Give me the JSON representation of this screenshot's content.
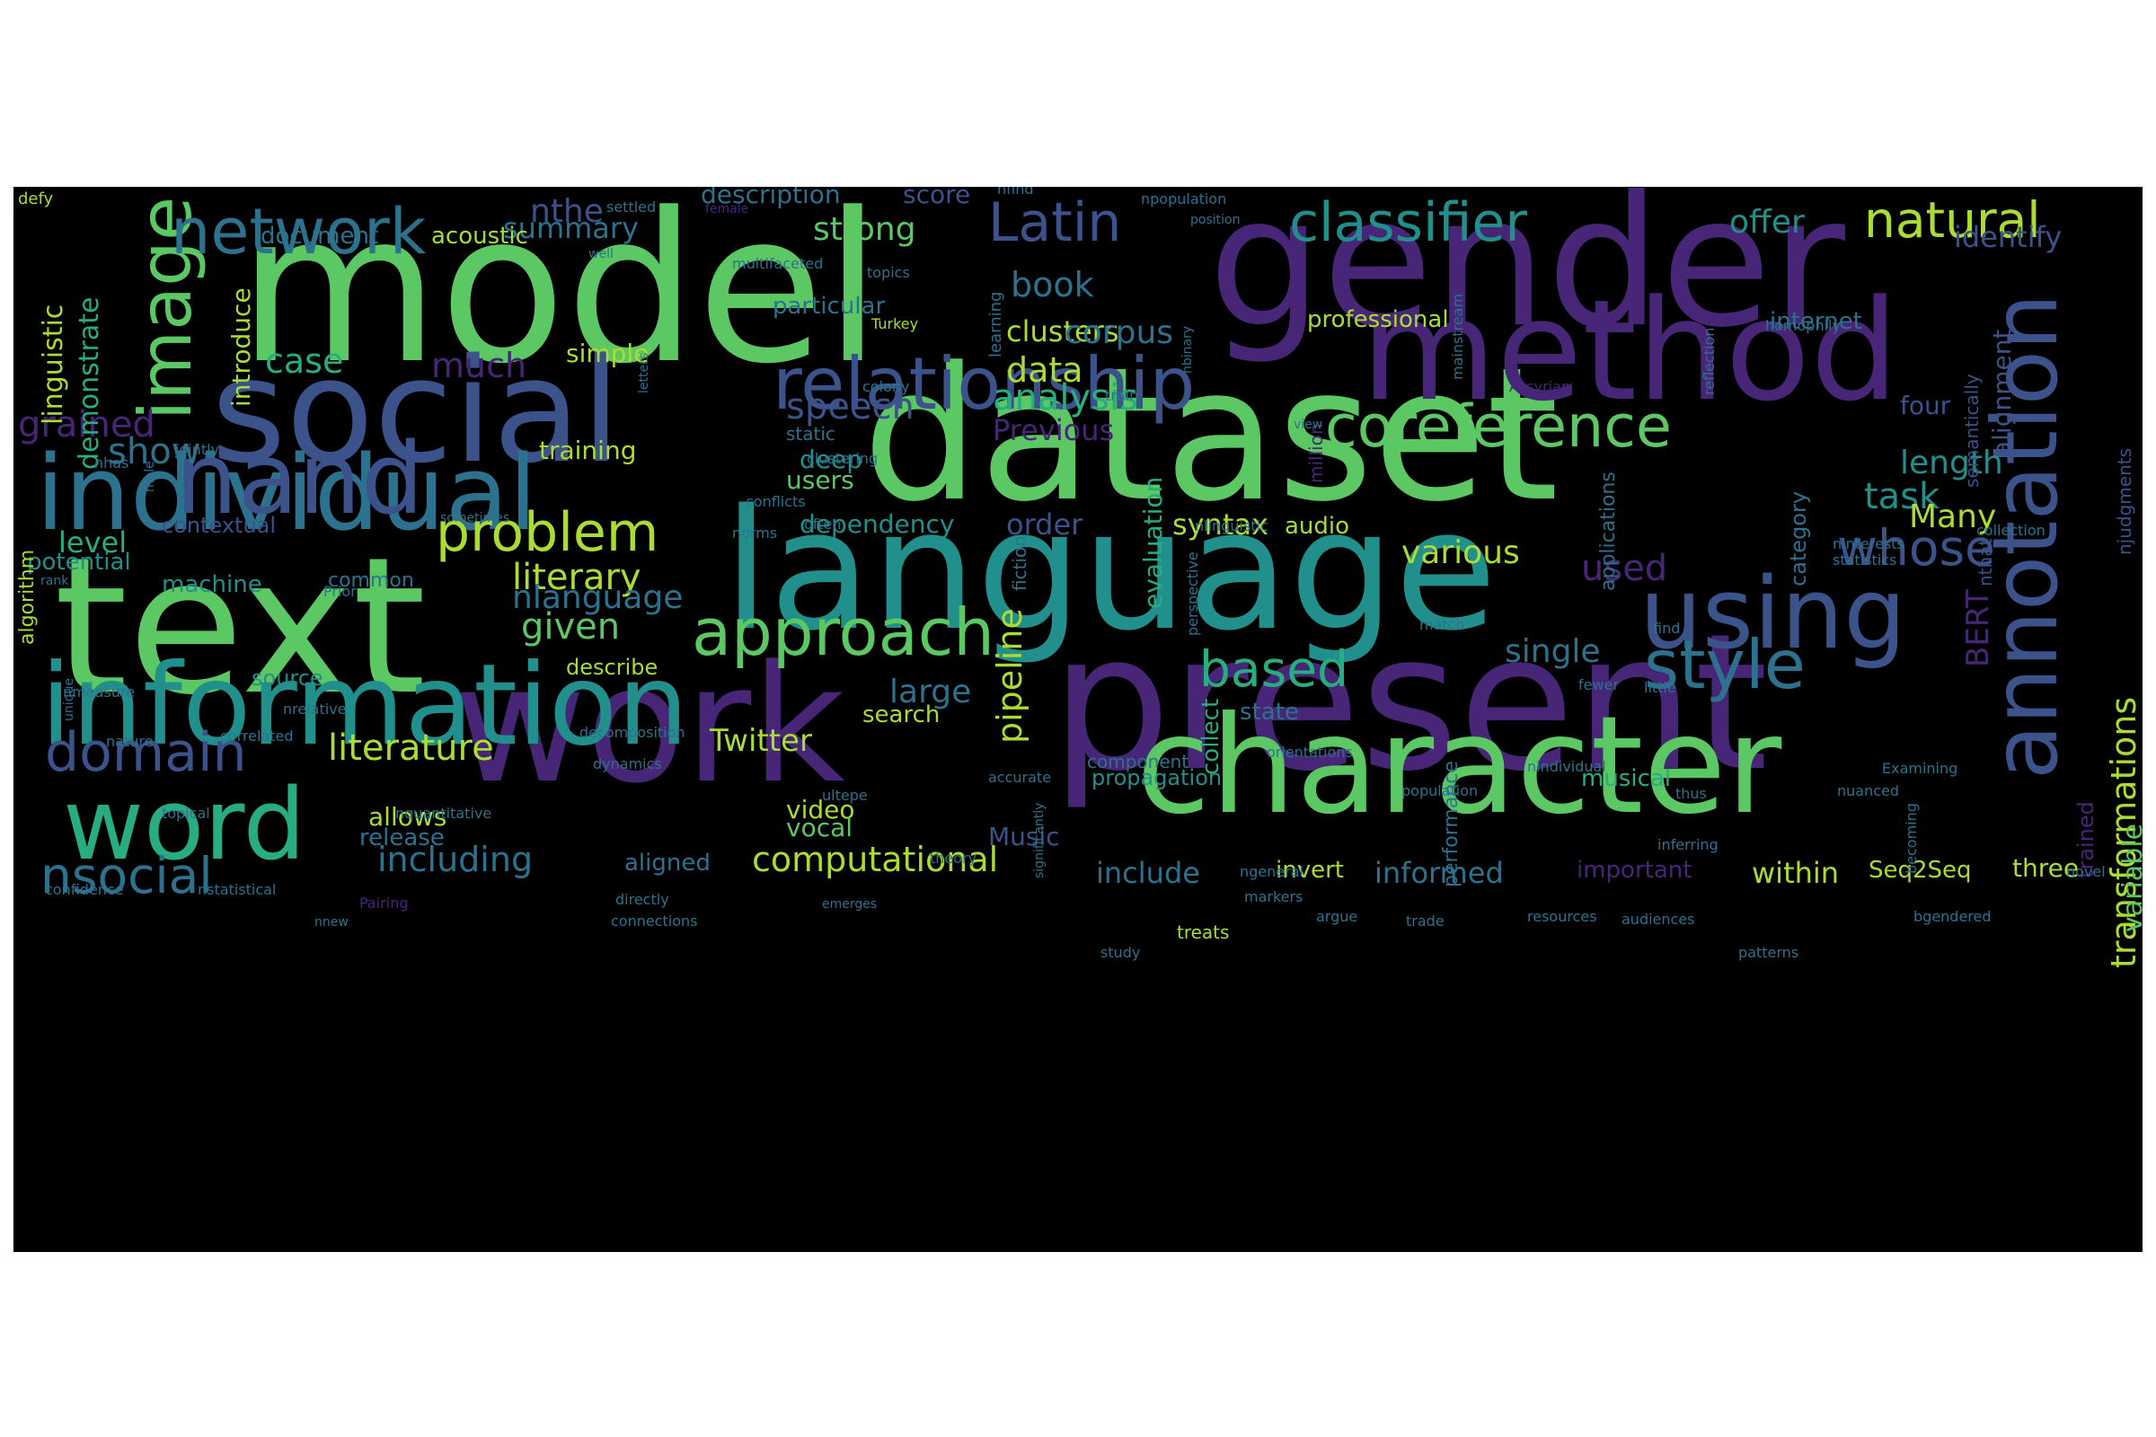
{
  "colors": {
    "background": "#000000",
    "page": "#ffffff",
    "palette": [
      "#440154",
      "#482677",
      "#3b528b",
      "#2c728e",
      "#21908c",
      "#27ad81",
      "#5cc863",
      "#aadc32",
      "#fde725"
    ]
  },
  "words": [
    {
      "text": "model",
      "color": "#5cc863"
    },
    {
      "text": "gender",
      "color": "#482677"
    },
    {
      "text": "dataset",
      "color": "#5cc863"
    },
    {
      "text": "social",
      "color": "#3b528b"
    },
    {
      "text": "method",
      "color": "#482677"
    },
    {
      "text": "present",
      "color": "#482677"
    },
    {
      "text": "text",
      "color": "#5cc863"
    },
    {
      "text": "language",
      "color": "#21908c"
    },
    {
      "text": "work",
      "color": "#482677"
    },
    {
      "text": "character",
      "color": "#5cc863"
    },
    {
      "text": "information",
      "color": "#21908c"
    },
    {
      "text": "individual",
      "color": "#2c728e"
    },
    {
      "text": "nand",
      "color": "#3b528b"
    },
    {
      "text": "annotation",
      "color": "#3b528b"
    },
    {
      "text": "image",
      "color": "#5cc863"
    },
    {
      "text": "relationship",
      "color": "#3b528b"
    },
    {
      "text": "network",
      "color": "#2c728e"
    },
    {
      "text": "word",
      "color": "#27ad81"
    },
    {
      "text": "using",
      "color": "#3b528b"
    },
    {
      "text": "approach",
      "color": "#5cc863"
    },
    {
      "text": "coreference",
      "color": "#5cc863"
    },
    {
      "text": "style",
      "color": "#2c728e"
    },
    {
      "text": "classifier",
      "color": "#21908c"
    },
    {
      "text": "domain",
      "color": "#3b528b"
    },
    {
      "text": "Latin",
      "color": "#3b528b"
    },
    {
      "text": "problem",
      "color": "#aadc32"
    },
    {
      "text": "natural",
      "color": "#aadc32"
    },
    {
      "text": "nsocial",
      "color": "#2c728e"
    },
    {
      "text": "whose",
      "color": "#3b528b"
    },
    {
      "text": "based",
      "color": "#27ad81"
    },
    {
      "text": "literature",
      "color": "#aadc32"
    },
    {
      "text": "computational",
      "color": "#aadc32"
    },
    {
      "text": "including",
      "color": "#2c728e"
    },
    {
      "text": "grained",
      "color": "#482677"
    },
    {
      "text": "speech",
      "color": "#3b528b"
    },
    {
      "text": "literary",
      "color": "#aadc32"
    },
    {
      "text": "transformations",
      "color": "#aadc32"
    },
    {
      "text": "book",
      "color": "#2c728e"
    },
    {
      "text": "clusters",
      "color": "#aadc32"
    },
    {
      "text": "data",
      "color": "#aadc32"
    },
    {
      "text": "analysis",
      "color": "#27ad81"
    },
    {
      "text": "strong",
      "color": "#5cc863"
    },
    {
      "text": "nthe",
      "color": "#3b528b"
    },
    {
      "text": "summary",
      "color": "#2c728e"
    },
    {
      "text": "case",
      "color": "#27ad81"
    },
    {
      "text": "much",
      "color": "#482677"
    },
    {
      "text": "show",
      "color": "#2c728e"
    },
    {
      "text": "given",
      "color": "#5cc863"
    },
    {
      "text": "nlanguage",
      "color": "#2c728e"
    },
    {
      "text": "corpus",
      "color": "#2c728e"
    },
    {
      "text": "offer",
      "color": "#21908c"
    },
    {
      "text": "identify",
      "color": "#3b528b"
    },
    {
      "text": "task",
      "color": "#21908c"
    },
    {
      "text": "length",
      "color": "#21908c"
    },
    {
      "text": "Many",
      "color": "#aadc32"
    },
    {
      "text": "various",
      "color": "#aadc32"
    },
    {
      "text": "used",
      "color": "#482677"
    },
    {
      "text": "single",
      "color": "#2c728e"
    },
    {
      "text": "large",
      "color": "#2c728e"
    },
    {
      "text": "pipeline",
      "color": "#aadc32"
    },
    {
      "text": "Twitter",
      "color": "#aadc32"
    },
    {
      "text": "linguistic",
      "color": "#aadc32"
    },
    {
      "text": "demonstrate",
      "color": "#27ad81"
    },
    {
      "text": "introduce",
      "color": "#aadc32"
    },
    {
      "text": "document",
      "color": "#2c728e"
    },
    {
      "text": "acoustic",
      "color": "#aadc32"
    },
    {
      "text": "description",
      "color": "#2c728e"
    },
    {
      "text": "score",
      "color": "#3b528b"
    },
    {
      "text": "particular",
      "color": "#2c728e"
    },
    {
      "text": "professional",
      "color": "#aadc32"
    },
    {
      "text": "internet",
      "color": "#2c728e"
    },
    {
      "text": "simple",
      "color": "#aadc32"
    },
    {
      "text": "training",
      "color": "#aadc32"
    },
    {
      "text": "Previous",
      "color": "#482677"
    },
    {
      "text": "deep",
      "color": "#21908c"
    },
    {
      "text": "users",
      "color": "#5cc863"
    },
    {
      "text": "dependency",
      "color": "#21908c"
    },
    {
      "text": "order",
      "color": "#3b528b"
    },
    {
      "text": "syntax",
      "color": "#aadc32"
    },
    {
      "text": "audio",
      "color": "#aadc32"
    },
    {
      "text": "four",
      "color": "#3b528b"
    },
    {
      "text": "evaluation",
      "color": "#27ad81"
    },
    {
      "text": "level",
      "color": "#27ad81"
    },
    {
      "text": "potential",
      "color": "#21908c"
    },
    {
      "text": "contextual",
      "color": "#3b528b"
    },
    {
      "text": "machine",
      "color": "#21908c"
    },
    {
      "text": "common",
      "color": "#2c728e"
    },
    {
      "text": "source",
      "color": "#21908c"
    },
    {
      "text": "describe",
      "color": "#aadc32"
    },
    {
      "text": "algorithm",
      "color": "#aadc32"
    },
    {
      "text": "allows",
      "color": "#aadc32"
    },
    {
      "text": "release",
      "color": "#2c728e"
    },
    {
      "text": "video",
      "color": "#aadc32"
    },
    {
      "text": "vocal",
      "color": "#5cc863"
    },
    {
      "text": "Music",
      "color": "#3b528b"
    },
    {
      "text": "aligned",
      "color": "#2c728e"
    },
    {
      "text": "include",
      "color": "#2c728e"
    },
    {
      "text": "invert",
      "color": "#aadc32"
    },
    {
      "text": "informed",
      "color": "#2c728e"
    },
    {
      "text": "important",
      "color": "#482677"
    },
    {
      "text": "within",
      "color": "#aadc32"
    },
    {
      "text": "Seq2Seq",
      "color": "#aadc32"
    },
    {
      "text": "three",
      "color": "#aadc32"
    },
    {
      "text": "musical",
      "color": "#27ad81"
    },
    {
      "text": "propagation",
      "color": "#21908c"
    },
    {
      "text": "state",
      "color": "#2c728e"
    },
    {
      "text": "search",
      "color": "#aadc32"
    },
    {
      "text": "collect",
      "color": "#27ad81"
    },
    {
      "text": "category",
      "color": "#2c728e"
    },
    {
      "text": "variable",
      "color": "#5cc863"
    },
    {
      "text": "BERT",
      "color": "#482677"
    },
    {
      "text": "alignment",
      "color": "#3b528b"
    },
    {
      "text": "trained",
      "color": "#482677"
    },
    {
      "text": "performance",
      "color": "#2c728e"
    },
    {
      "text": "applications",
      "color": "#2c728e"
    },
    {
      "text": "million",
      "color": "#482677"
    },
    {
      "text": "fiction",
      "color": "#2c728e"
    },
    {
      "text": "semantically",
      "color": "#3b528b"
    },
    {
      "text": "njudgments",
      "color": "#3b528b"
    },
    {
      "text": "nthat",
      "color": "#3b528b"
    },
    {
      "text": "learning",
      "color": "#2c728e"
    },
    {
      "text": "static",
      "color": "#2c728e"
    },
    {
      "text": "clustering",
      "color": "#2c728e"
    },
    {
      "text": "conflicts",
      "color": "#2c728e"
    },
    {
      "text": "norms",
      "color": "#2c728e"
    },
    {
      "text": "often",
      "color": "#2c728e"
    },
    {
      "text": "nmeasure",
      "color": "#2c728e"
    },
    {
      "text": "nrelative",
      "color": "#2c728e"
    },
    {
      "text": "nature",
      "color": "#2c728e"
    },
    {
      "text": "correlated",
      "color": "#2c728e"
    },
    {
      "text": "dynamics",
      "color": "#2c728e"
    },
    {
      "text": "decomposition",
      "color": "#2c728e"
    },
    {
      "text": "topical",
      "color": "#2c728e"
    },
    {
      "text": "nquantitative",
      "color": "#2c728e"
    },
    {
      "text": "confidence",
      "color": "#2c728e"
    },
    {
      "text": "nstatistical",
      "color": "#2c728e"
    },
    {
      "text": "Pairing",
      "color": "#482677"
    },
    {
      "text": "directly",
      "color": "#2c728e"
    },
    {
      "text": "connections",
      "color": "#2c728e"
    },
    {
      "text": "nnew",
      "color": "#2c728e"
    },
    {
      "text": "emerges",
      "color": "#2c728e"
    },
    {
      "text": "component",
      "color": "#2c728e"
    },
    {
      "text": "accurate",
      "color": "#2c728e"
    },
    {
      "text": "ultepe",
      "color": "#2c728e"
    },
    {
      "text": "theory",
      "color": "#2c728e"
    },
    {
      "text": "significantly",
      "color": "#2c728e"
    },
    {
      "text": "orientations",
      "color": "#2c728e"
    },
    {
      "text": "ngeneral",
      "color": "#2c728e"
    },
    {
      "text": "markers",
      "color": "#2c728e"
    },
    {
      "text": "argue",
      "color": "#2c728e"
    },
    {
      "text": "trade",
      "color": "#2c728e"
    },
    {
      "text": "study",
      "color": "#2c728e"
    },
    {
      "text": "treats",
      "color": "#aadc32"
    },
    {
      "text": "resources",
      "color": "#2c728e"
    },
    {
      "text": "audiences",
      "color": "#2c728e"
    },
    {
      "text": "patterns",
      "color": "#2c728e"
    },
    {
      "text": "population",
      "color": "#2c728e"
    },
    {
      "text": "thus",
      "color": "#2c728e"
    },
    {
      "text": "nuanced",
      "color": "#2c728e"
    },
    {
      "text": "Examining",
      "color": "#2c728e"
    },
    {
      "text": "nindividual",
      "color": "#2c728e"
    },
    {
      "text": "inferring",
      "color": "#2c728e"
    },
    {
      "text": "becoming",
      "color": "#2c728e"
    },
    {
      "text": "bgendered",
      "color": "#2c728e"
    },
    {
      "text": "novel",
      "color": "#2c728e"
    },
    {
      "text": "fewer",
      "color": "#2c728e"
    },
    {
      "text": "little",
      "color": "#2c728e"
    },
    {
      "text": "find",
      "color": "#2c728e"
    },
    {
      "text": "match",
      "color": "#2c728e"
    },
    {
      "text": "perspective",
      "color": "#2c728e"
    },
    {
      "text": "nlinguistic",
      "color": "#2c728e"
    },
    {
      "text": "collection",
      "color": "#2c728e"
    },
    {
      "text": "ninterests",
      "color": "#2c728e"
    },
    {
      "text": "statistics",
      "color": "#2c728e"
    },
    {
      "text": "homophily",
      "color": "#2c728e"
    },
    {
      "text": "reflection",
      "color": "#2c728e"
    },
    {
      "text": "mainstream",
      "color": "#2c728e"
    },
    {
      "text": "Assyrian",
      "color": "#482677"
    },
    {
      "text": "view",
      "color": "#2c728e"
    },
    {
      "text": "nbinary",
      "color": "#2c728e"
    },
    {
      "text": "train",
      "color": "#2c728e"
    },
    {
      "text": "colony",
      "color": "#2c728e"
    },
    {
      "text": "letters",
      "color": "#2c728e"
    },
    {
      "text": "Turkey",
      "color": "#aadc32"
    },
    {
      "text": "topics",
      "color": "#2c728e"
    },
    {
      "text": "multifaceted",
      "color": "#2c728e"
    },
    {
      "text": "well",
      "color": "#2c728e"
    },
    {
      "text": "position",
      "color": "#2c728e"
    },
    {
      "text": "npopulation",
      "color": "#2c728e"
    },
    {
      "text": "nfind",
      "color": "#2c728e"
    },
    {
      "text": "female",
      "color": "#482677"
    },
    {
      "text": "settled",
      "color": "#2c728e"
    },
    {
      "text": "defy",
      "color": "#aadc32"
    },
    {
      "text": "nhas",
      "color": "#2c728e"
    },
    {
      "text": "jointly",
      "color": "#2c728e"
    },
    {
      "text": "male",
      "color": "#2c728e"
    },
    {
      "text": "sometimes",
      "color": "#2c728e"
    },
    {
      "text": "rank",
      "color": "#2c728e"
    },
    {
      "text": "Prior",
      "color": "#2c728e"
    },
    {
      "text": "unique",
      "color": "#2c728e"
    }
  ]
}
